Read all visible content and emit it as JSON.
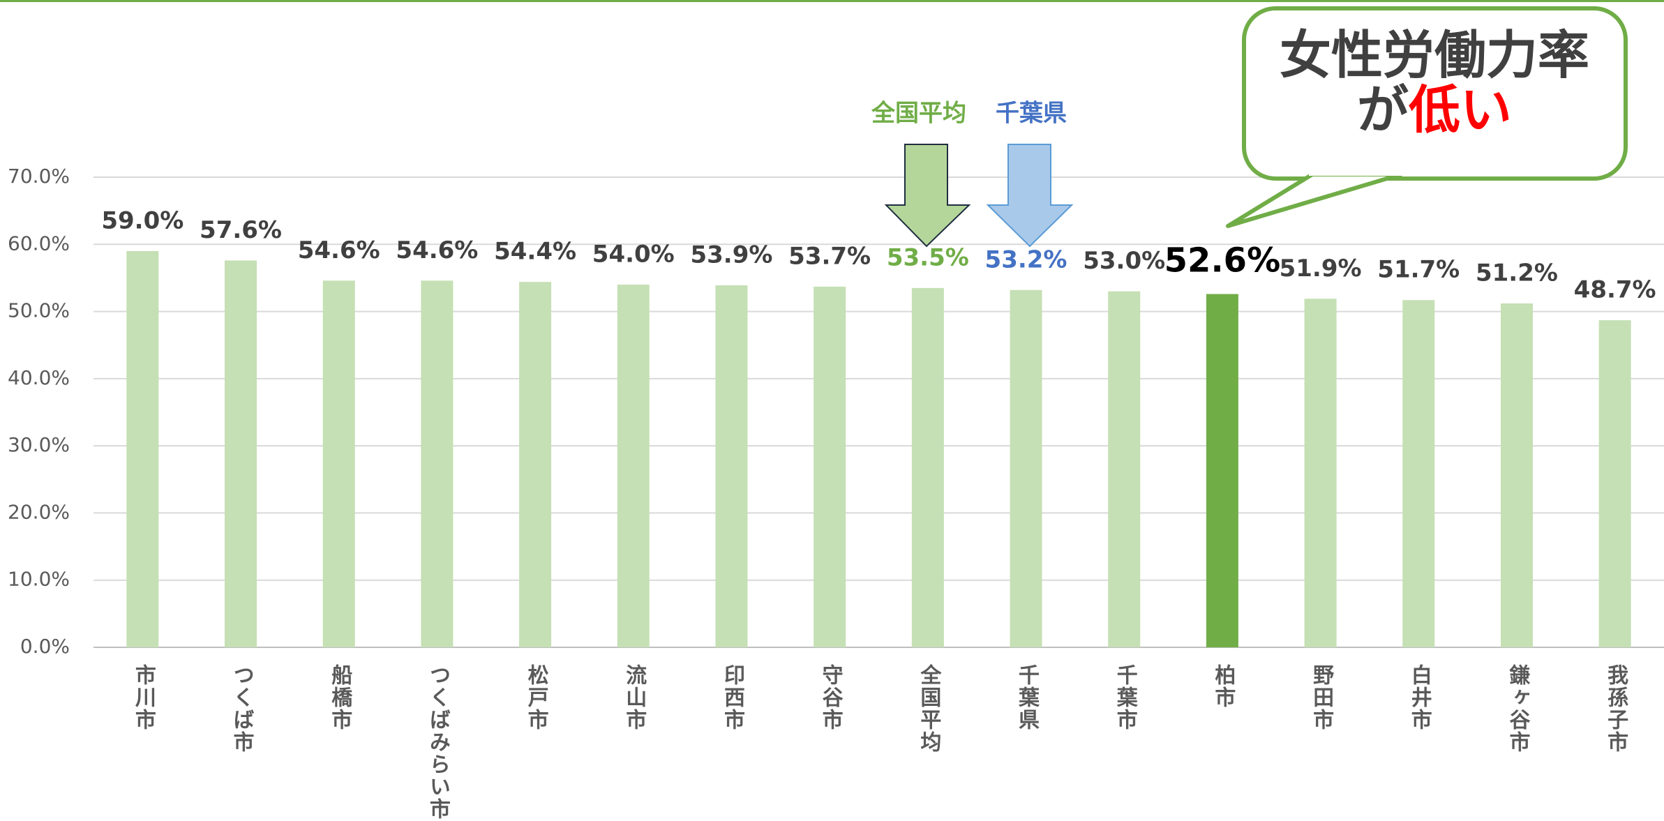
{
  "chart_data": {
    "type": "bar",
    "categories": [
      "市川市",
      "つくば市",
      "船橋市",
      "つくばみらい市",
      "松戸市",
      "流山市",
      "印西市",
      "守谷市",
      "全国平均",
      "千葉県",
      "千葉市",
      "柏市",
      "野田市",
      "白井市",
      "鎌ヶ谷市",
      "我孫子市"
    ],
    "values": [
      59.0,
      57.6,
      54.6,
      54.6,
      54.4,
      54.0,
      53.9,
      53.7,
      53.5,
      53.2,
      53.0,
      52.6,
      51.9,
      51.7,
      51.2,
      48.7
    ],
    "value_labels": [
      "59.0%",
      "57.6%",
      "54.6%",
      "54.6%",
      "54.4%",
      "54.0%",
      "53.9%",
      "53.7%",
      "53.5%",
      "53.2%",
      "53.0%",
      "52.6%",
      "51.9%",
      "51.7%",
      "51.2%",
      "48.7%"
    ],
    "colors": [
      "#c5e0b4",
      "#c5e0b4",
      "#c5e0b4",
      "#c5e0b4",
      "#c5e0b4",
      "#c5e0b4",
      "#c5e0b4",
      "#c5e0b4",
      "#c5e0b4",
      "#c5e0b4",
      "#c5e0b4",
      "#70ad47",
      "#c5e0b4",
      "#c5e0b4",
      "#c5e0b4",
      "#c5e0b4"
    ],
    "value_label_colors": [
      "#404040",
      "#404040",
      "#404040",
      "#404040",
      "#404040",
      "#404040",
      "#404040",
      "#404040",
      "#70ad47",
      "#4472c4",
      "#404040",
      "#000000",
      "#404040",
      "#404040",
      "#404040",
      "#404040"
    ],
    "ylim": [
      0,
      70
    ],
    "yticks": [
      {
        "value": 0,
        "label": "0.0%"
      },
      {
        "value": 10,
        "label": "10.0%"
      },
      {
        "value": 20,
        "label": "20.0%"
      },
      {
        "value": 30,
        "label": "30.0%"
      },
      {
        "value": 40,
        "label": "40.0%"
      },
      {
        "value": 50,
        "label": "50.0%"
      },
      {
        "value": 60,
        "label": "60.0%"
      },
      {
        "value": 70,
        "label": "70.0%"
      }
    ],
    "grid": true,
    "annotations": {
      "national": "全国平均",
      "prefecture": "千葉県",
      "callout_line1": "女性労働力率",
      "callout_line2a": "が",
      "callout_line2b": "低い"
    }
  }
}
